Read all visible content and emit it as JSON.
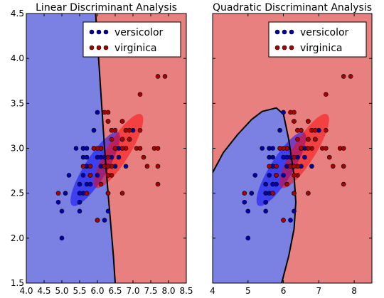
{
  "chart_data": [
    {
      "type": "scatter",
      "title": "Linear Discriminant Analysis",
      "xlabel": "",
      "ylabel": "",
      "xlim": [
        4.0,
        8.5
      ],
      "ylim": [
        1.5,
        4.5
      ],
      "xticks": [
        "4.0",
        "4.5",
        "5.0",
        "5.5",
        "6.0",
        "6.5",
        "7.0",
        "7.5",
        "8.0",
        "8.5"
      ],
      "yticks": [
        "1.5",
        "2.0",
        "2.5",
        "3.0",
        "3.5",
        "4.0",
        "4.5"
      ],
      "grid": false,
      "legend_position": "top-right",
      "regions": [
        {
          "name": "versicolor",
          "color": "#7b80e3"
        },
        {
          "name": "virginica",
          "color": "#e88080"
        }
      ],
      "boundary": [
        [
          5.95,
          4.5
        ],
        [
          6.1,
          3.6
        ],
        [
          6.2,
          3.0
        ],
        [
          6.3,
          2.5
        ],
        [
          6.45,
          1.8
        ],
        [
          6.5,
          1.5
        ]
      ],
      "ellipses": [
        {
          "class": "versicolor",
          "center": [
            5.94,
            2.77
          ],
          "semi_axes": [
            0.55,
            0.2
          ],
          "angle_deg": 58,
          "color": "#0000ff"
        },
        {
          "class": "virginica",
          "center": [
            6.59,
            2.97
          ],
          "semi_axes": [
            0.55,
            0.2
          ],
          "angle_deg": 58,
          "color": "#ff0000"
        }
      ],
      "series": [
        {
          "name": "versicolor",
          "color": "#0000aa",
          "points": [
            [
              7.0,
              3.2
            ],
            [
              6.4,
              3.2
            ],
            [
              6.9,
              3.1
            ],
            [
              5.5,
              2.3
            ],
            [
              6.5,
              2.8
            ],
            [
              5.7,
              2.8
            ],
            [
              6.3,
              3.3
            ],
            [
              4.9,
              2.4
            ],
            [
              6.6,
              2.9
            ],
            [
              5.2,
              2.7
            ],
            [
              5.0,
              2.0
            ],
            [
              5.9,
              3.0
            ],
            [
              6.0,
              2.2
            ],
            [
              6.1,
              2.9
            ],
            [
              5.6,
              2.9
            ],
            [
              6.7,
              3.1
            ],
            [
              5.6,
              3.0
            ],
            [
              5.8,
              2.7
            ],
            [
              6.2,
              2.2
            ],
            [
              5.6,
              2.5
            ],
            [
              5.9,
              3.2
            ],
            [
              6.1,
              2.8
            ],
            [
              6.3,
              2.5
            ],
            [
              6.1,
              2.8
            ],
            [
              6.4,
              2.9
            ],
            [
              6.6,
              3.0
            ],
            [
              6.8,
              2.8
            ],
            [
              6.7,
              3.0
            ],
            [
              6.0,
              2.9
            ],
            [
              5.7,
              2.6
            ],
            [
              5.5,
              2.4
            ],
            [
              5.5,
              2.4
            ],
            [
              5.8,
              2.7
            ],
            [
              6.0,
              2.7
            ],
            [
              5.4,
              3.0
            ],
            [
              6.0,
              3.4
            ],
            [
              6.7,
              3.1
            ],
            [
              6.3,
              2.3
            ],
            [
              5.6,
              3.0
            ],
            [
              5.5,
              2.5
            ],
            [
              5.5,
              2.6
            ],
            [
              6.1,
              3.0
            ],
            [
              5.8,
              2.6
            ],
            [
              5.0,
              2.3
            ],
            [
              5.6,
              2.7
            ],
            [
              5.7,
              3.0
            ],
            [
              5.7,
              2.9
            ],
            [
              6.2,
              2.9
            ],
            [
              5.1,
              2.5
            ],
            [
              5.7,
              2.8
            ]
          ]
        },
        {
          "name": "virginica",
          "color": "#aa0000",
          "points": [
            [
              6.3,
              3.3
            ],
            [
              5.8,
              2.7
            ],
            [
              7.1,
              3.0
            ],
            [
              6.3,
              2.9
            ],
            [
              6.5,
              3.0
            ],
            [
              7.6,
              3.0
            ],
            [
              4.9,
              2.5
            ],
            [
              7.3,
              2.9
            ],
            [
              6.7,
              2.5
            ],
            [
              7.2,
              3.6
            ],
            [
              6.5,
              3.2
            ],
            [
              6.4,
              2.7
            ],
            [
              6.8,
              3.0
            ],
            [
              5.7,
              2.5
            ],
            [
              5.8,
              2.8
            ],
            [
              6.4,
              3.2
            ],
            [
              6.5,
              3.0
            ],
            [
              7.7,
              3.8
            ],
            [
              7.7,
              2.6
            ],
            [
              6.0,
              2.2
            ],
            [
              6.9,
              3.2
            ],
            [
              5.6,
              2.8
            ],
            [
              7.7,
              2.8
            ],
            [
              6.3,
              2.7
            ],
            [
              6.7,
              3.3
            ],
            [
              7.2,
              3.2
            ],
            [
              6.2,
              2.8
            ],
            [
              6.1,
              3.0
            ],
            [
              6.4,
              2.8
            ],
            [
              7.2,
              3.0
            ],
            [
              7.4,
              2.8
            ],
            [
              7.9,
              3.8
            ],
            [
              6.4,
              2.8
            ],
            [
              6.3,
              2.8
            ],
            [
              6.1,
              2.6
            ],
            [
              7.7,
              3.0
            ],
            [
              6.3,
              3.4
            ],
            [
              6.4,
              3.1
            ],
            [
              6.0,
              3.0
            ],
            [
              6.9,
              3.1
            ],
            [
              6.7,
              3.1
            ],
            [
              6.9,
              3.1
            ],
            [
              5.8,
              2.7
            ],
            [
              6.8,
              3.2
            ],
            [
              6.7,
              3.3
            ],
            [
              6.7,
              3.0
            ],
            [
              6.3,
              2.5
            ],
            [
              6.5,
              3.0
            ],
            [
              6.2,
              3.4
            ],
            [
              5.9,
              3.0
            ]
          ]
        }
      ]
    },
    {
      "type": "scatter",
      "title": "Quadratic Discriminant Analysis",
      "xlabel": "",
      "ylabel": "",
      "xlim": [
        4.0,
        8.5
      ],
      "ylim": [
        1.5,
        4.5
      ],
      "xticks": [
        "4",
        "5",
        "6",
        "7",
        "8"
      ],
      "yticks": [],
      "grid": false,
      "legend_position": "top-right",
      "regions": [
        {
          "name": "versicolor",
          "color": "#7b80e3"
        },
        {
          "name": "virginica",
          "color": "#e88080"
        }
      ],
      "boundary": [
        [
          4.0,
          2.73
        ],
        [
          4.3,
          2.95
        ],
        [
          4.7,
          3.15
        ],
        [
          5.1,
          3.32
        ],
        [
          5.4,
          3.41
        ],
        [
          5.8,
          3.45
        ],
        [
          6.0,
          3.38
        ],
        [
          6.15,
          3.1
        ],
        [
          6.3,
          2.7
        ],
        [
          6.35,
          2.4
        ],
        [
          6.3,
          2.1
        ],
        [
          6.15,
          1.8
        ],
        [
          5.95,
          1.5
        ]
      ],
      "ellipses": [
        {
          "class": "versicolor",
          "center": [
            5.94,
            2.77
          ],
          "semi_axes": [
            0.55,
            0.2
          ],
          "angle_deg": 58,
          "color": "#0000ff"
        },
        {
          "class": "virginica",
          "center": [
            6.59,
            2.97
          ],
          "semi_axes": [
            0.55,
            0.2
          ],
          "angle_deg": 58,
          "color": "#ff0000"
        }
      ],
      "series": [
        {
          "name": "versicolor",
          "color": "#0000aa",
          "points": [
            [
              7.0,
              3.2
            ],
            [
              6.4,
              3.2
            ],
            [
              6.9,
              3.1
            ],
            [
              5.5,
              2.3
            ],
            [
              6.5,
              2.8
            ],
            [
              5.7,
              2.8
            ],
            [
              6.3,
              3.3
            ],
            [
              4.9,
              2.4
            ],
            [
              6.6,
              2.9
            ],
            [
              5.2,
              2.7
            ],
            [
              5.0,
              2.0
            ],
            [
              5.9,
              3.0
            ],
            [
              6.0,
              2.2
            ],
            [
              6.1,
              2.9
            ],
            [
              5.6,
              2.9
            ],
            [
              6.7,
              3.1
            ],
            [
              5.6,
              3.0
            ],
            [
              5.8,
              2.7
            ],
            [
              6.2,
              2.2
            ],
            [
              5.6,
              2.5
            ],
            [
              5.9,
              3.2
            ],
            [
              6.1,
              2.8
            ],
            [
              6.3,
              2.5
            ],
            [
              6.1,
              2.8
            ],
            [
              6.4,
              2.9
            ],
            [
              6.6,
              3.0
            ],
            [
              6.8,
              2.8
            ],
            [
              6.7,
              3.0
            ],
            [
              6.0,
              2.9
            ],
            [
              5.7,
              2.6
            ],
            [
              5.5,
              2.4
            ],
            [
              5.5,
              2.4
            ],
            [
              5.8,
              2.7
            ],
            [
              6.0,
              2.7
            ],
            [
              5.4,
              3.0
            ],
            [
              6.0,
              3.4
            ],
            [
              6.7,
              3.1
            ],
            [
              6.3,
              2.3
            ],
            [
              5.6,
              3.0
            ],
            [
              5.5,
              2.5
            ],
            [
              5.5,
              2.6
            ],
            [
              6.1,
              3.0
            ],
            [
              5.8,
              2.6
            ],
            [
              5.0,
              2.3
            ],
            [
              5.6,
              2.7
            ],
            [
              5.7,
              3.0
            ],
            [
              5.7,
              2.9
            ],
            [
              6.2,
              2.9
            ],
            [
              5.1,
              2.5
            ],
            [
              5.7,
              2.8
            ]
          ]
        },
        {
          "name": "virginica",
          "color": "#aa0000",
          "points": [
            [
              6.3,
              3.3
            ],
            [
              5.8,
              2.7
            ],
            [
              7.1,
              3.0
            ],
            [
              6.3,
              2.9
            ],
            [
              6.5,
              3.0
            ],
            [
              7.6,
              3.0
            ],
            [
              4.9,
              2.5
            ],
            [
              7.3,
              2.9
            ],
            [
              6.7,
              2.5
            ],
            [
              7.2,
              3.6
            ],
            [
              6.5,
              3.2
            ],
            [
              6.4,
              2.7
            ],
            [
              6.8,
              3.0
            ],
            [
              5.7,
              2.5
            ],
            [
              5.8,
              2.8
            ],
            [
              6.4,
              3.2
            ],
            [
              6.5,
              3.0
            ],
            [
              7.7,
              3.8
            ],
            [
              7.7,
              2.6
            ],
            [
              6.0,
              2.2
            ],
            [
              6.9,
              3.2
            ],
            [
              5.6,
              2.8
            ],
            [
              7.7,
              2.8
            ],
            [
              6.3,
              2.7
            ],
            [
              6.7,
              3.3
            ],
            [
              7.2,
              3.2
            ],
            [
              6.2,
              2.8
            ],
            [
              6.1,
              3.0
            ],
            [
              6.4,
              2.8
            ],
            [
              7.2,
              3.0
            ],
            [
              7.4,
              2.8
            ],
            [
              7.9,
              3.8
            ],
            [
              6.4,
              2.8
            ],
            [
              6.3,
              2.8
            ],
            [
              6.1,
              2.6
            ],
            [
              7.7,
              3.0
            ],
            [
              6.3,
              3.4
            ],
            [
              6.4,
              3.1
            ],
            [
              6.0,
              3.0
            ],
            [
              6.9,
              3.1
            ],
            [
              6.7,
              3.1
            ],
            [
              6.9,
              3.1
            ],
            [
              5.8,
              2.7
            ],
            [
              6.8,
              3.2
            ],
            [
              6.7,
              3.3
            ],
            [
              6.7,
              3.0
            ],
            [
              6.3,
              2.5
            ],
            [
              6.5,
              3.0
            ],
            [
              6.2,
              3.4
            ],
            [
              5.9,
              3.0
            ]
          ]
        }
      ]
    }
  ]
}
